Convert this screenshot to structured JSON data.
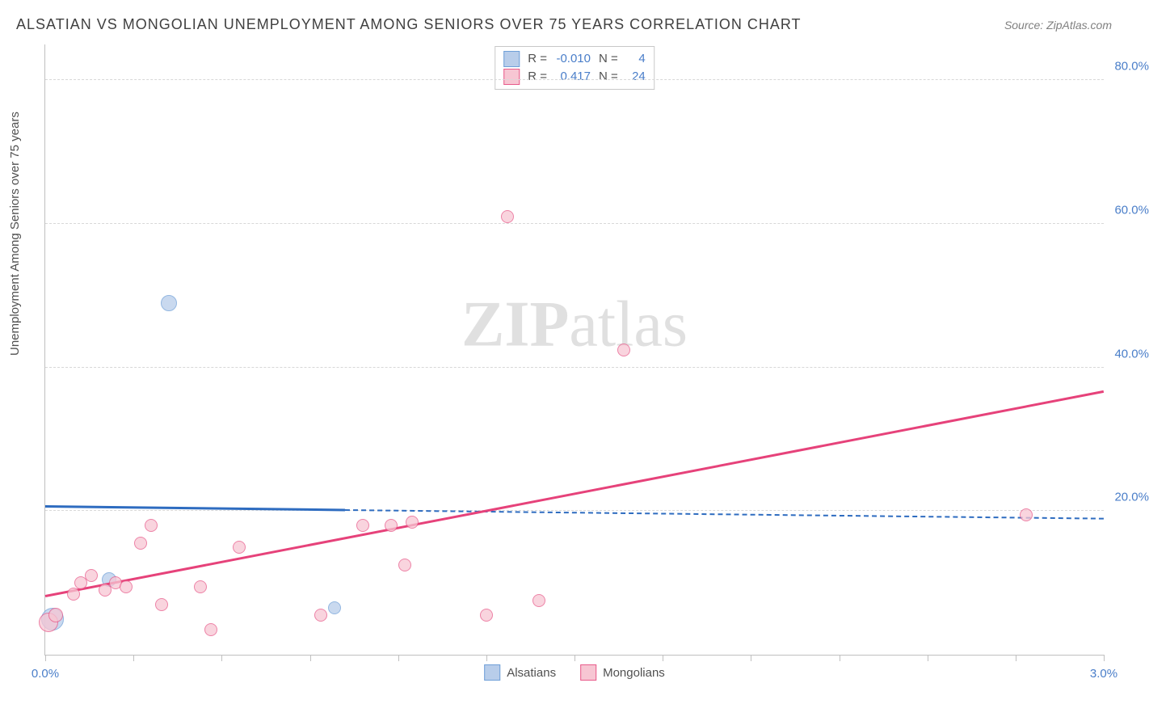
{
  "title": "ALSATIAN VS MONGOLIAN UNEMPLOYMENT AMONG SENIORS OVER 75 YEARS CORRELATION CHART",
  "source": "Source: ZipAtlas.com",
  "y_axis_label": "Unemployment Among Seniors over 75 years",
  "watermark_bold": "ZIP",
  "watermark_light": "atlas",
  "chart": {
    "type": "scatter",
    "background_color": "#ffffff",
    "grid_color": "#d8d8d8",
    "axis_color": "#c0c0c0",
    "tick_label_color": "#4a7ec9",
    "xlim": [
      0.0,
      3.0
    ],
    "ylim": [
      0.0,
      85.0
    ],
    "x_ticks": [
      0.0,
      0.25,
      0.5,
      0.75,
      1.0,
      1.25,
      1.5,
      1.75,
      2.0,
      2.25,
      2.5,
      2.75,
      3.0
    ],
    "x_tick_labels": {
      "0": "0.0%",
      "3": "3.0%"
    },
    "y_grid_ticks": [
      20.0,
      40.0,
      60.0,
      80.0
    ],
    "y_tick_labels": [
      "20.0%",
      "40.0%",
      "60.0%",
      "80.0%"
    ],
    "series": [
      {
        "name": "Alsatians",
        "marker_fill": "#b8cdea",
        "marker_stroke": "#6f9fd8",
        "marker_size": 16,
        "trend_color": "#2e6cc0",
        "R": "-0.010",
        "N": "4",
        "trend_start": {
          "x": 0.0,
          "y": 20.5
        },
        "trend_end_solid": {
          "x": 0.85,
          "y": 20.0
        },
        "trend_end_dashed": {
          "x": 3.0,
          "y": 18.8
        },
        "points": [
          {
            "x": 0.02,
            "y": 5.0,
            "size": 26
          },
          {
            "x": 0.18,
            "y": 10.5,
            "size": 16
          },
          {
            "x": 0.82,
            "y": 6.5,
            "size": 14
          },
          {
            "x": 0.35,
            "y": 49.0,
            "size": 18
          }
        ]
      },
      {
        "name": "Mongolians",
        "marker_fill": "#f7c6d3",
        "marker_stroke": "#e85a8a",
        "marker_size": 16,
        "trend_color": "#e6427a",
        "R": "0.417",
        "N": "24",
        "trend_start": {
          "x": 0.0,
          "y": 8.0
        },
        "trend_end_solid": {
          "x": 3.0,
          "y": 36.5
        },
        "points": [
          {
            "x": 0.01,
            "y": 4.5,
            "size": 22
          },
          {
            "x": 0.03,
            "y": 5.5,
            "size": 16
          },
          {
            "x": 0.08,
            "y": 8.5,
            "size": 14
          },
          {
            "x": 0.1,
            "y": 10.0,
            "size": 14
          },
          {
            "x": 0.13,
            "y": 11.0,
            "size": 14
          },
          {
            "x": 0.17,
            "y": 9.0,
            "size": 14
          },
          {
            "x": 0.2,
            "y": 10.0,
            "size": 14
          },
          {
            "x": 0.23,
            "y": 9.5,
            "size": 14
          },
          {
            "x": 0.27,
            "y": 15.5,
            "size": 14
          },
          {
            "x": 0.3,
            "y": 18.0,
            "size": 14
          },
          {
            "x": 0.33,
            "y": 7.0,
            "size": 14
          },
          {
            "x": 0.44,
            "y": 9.5,
            "size": 14
          },
          {
            "x": 0.47,
            "y": 3.5,
            "size": 14
          },
          {
            "x": 0.55,
            "y": 15.0,
            "size": 14
          },
          {
            "x": 0.78,
            "y": 5.5,
            "size": 14
          },
          {
            "x": 0.9,
            "y": 18.0,
            "size": 14
          },
          {
            "x": 0.98,
            "y": 18.0,
            "size": 14
          },
          {
            "x": 1.02,
            "y": 12.5,
            "size": 14
          },
          {
            "x": 1.04,
            "y": 18.5,
            "size": 14
          },
          {
            "x": 1.25,
            "y": 5.5,
            "size": 14
          },
          {
            "x": 1.4,
            "y": 7.5,
            "size": 14
          },
          {
            "x": 1.31,
            "y": 61.0,
            "size": 14
          },
          {
            "x": 1.64,
            "y": 42.5,
            "size": 14
          },
          {
            "x": 2.78,
            "y": 19.5,
            "size": 14
          }
        ]
      }
    ]
  },
  "legend_bottom": [
    {
      "label": "Alsatians",
      "fill": "#b8cdea",
      "stroke": "#6f9fd8"
    },
    {
      "label": "Mongolians",
      "fill": "#f7c6d3",
      "stroke": "#e85a8a"
    }
  ]
}
